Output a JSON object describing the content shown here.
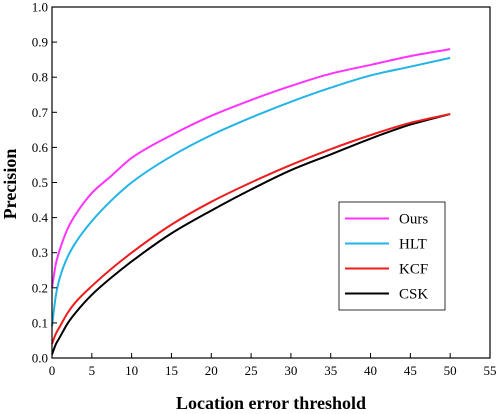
{
  "chart_data": {
    "type": "line",
    "xlabel": "Location error threshold",
    "ylabel": "Precision",
    "xlim": [
      0,
      55
    ],
    "ylim": [
      0,
      1.0
    ],
    "x_ticks": [
      0,
      5,
      10,
      15,
      20,
      25,
      30,
      35,
      40,
      45,
      50,
      55
    ],
    "y_ticks": [
      0.0,
      0.1,
      0.2,
      0.3,
      0.4,
      0.5,
      0.6,
      0.7,
      0.8,
      0.9,
      1.0
    ],
    "x_tick_labels": [
      "0",
      "5",
      "10",
      "15",
      "20",
      "25",
      "30",
      "35",
      "40",
      "45",
      "50",
      "55"
    ],
    "y_tick_labels": [
      "0.0",
      "0.1",
      "0.2",
      "0.3",
      "0.4",
      "0.5",
      "0.6",
      "0.7",
      "0.8",
      "0.9",
      "1.0"
    ],
    "grid": false,
    "legend_position": "bottom-right",
    "x": [
      0,
      0.5,
      1,
      2,
      3,
      5,
      7.5,
      10,
      15,
      20,
      25,
      30,
      35,
      40,
      45,
      50
    ],
    "series": [
      {
        "name": "Ours",
        "color": "#ff33ff",
        "values": [
          0.2,
          0.27,
          0.31,
          0.37,
          0.41,
          0.47,
          0.52,
          0.57,
          0.635,
          0.69,
          0.735,
          0.775,
          0.81,
          0.835,
          0.86,
          0.88
        ]
      },
      {
        "name": "HLT",
        "color": "#22b4e6",
        "values": [
          0.09,
          0.18,
          0.23,
          0.29,
          0.33,
          0.39,
          0.45,
          0.5,
          0.575,
          0.635,
          0.685,
          0.73,
          0.77,
          0.805,
          0.83,
          0.855
        ]
      },
      {
        "name": "KCF",
        "color": "#ee1c1c",
        "values": [
          0.04,
          0.07,
          0.09,
          0.13,
          0.16,
          0.205,
          0.255,
          0.3,
          0.38,
          0.445,
          0.5,
          0.55,
          0.595,
          0.635,
          0.67,
          0.695
        ]
      },
      {
        "name": "CSK",
        "color": "#000000",
        "values": [
          0.01,
          0.04,
          0.06,
          0.1,
          0.13,
          0.18,
          0.23,
          0.275,
          0.355,
          0.42,
          0.48,
          0.535,
          0.58,
          0.625,
          0.665,
          0.695
        ]
      }
    ]
  }
}
